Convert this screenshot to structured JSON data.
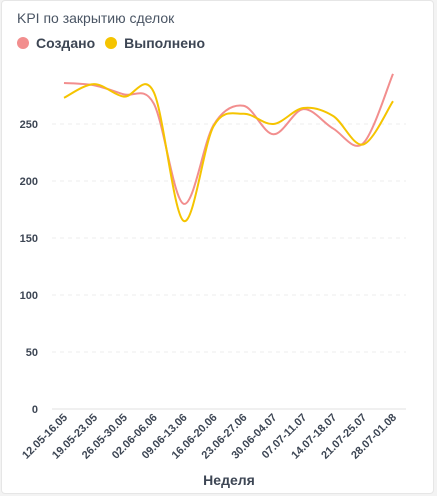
{
  "chart_data": {
    "type": "line",
    "title": "KPI по закрытию сделок",
    "xlabel": "Неделя",
    "ylabel": "",
    "ylim": [
      0,
      300
    ],
    "yticks": [
      0,
      50,
      100,
      150,
      200,
      250
    ],
    "grid": true,
    "legend_position": "top-left",
    "categories": [
      "12.05-16.05",
      "19.05-23.05",
      "26.05-30.05",
      "02.06-06.06",
      "09.06-13.06",
      "16.06-20.06",
      "23.06-27.06",
      "30.06-04.07",
      "07.07-11.07",
      "14.07-18.07",
      "21.07-25.07",
      "28.07-01.08"
    ],
    "series": [
      {
        "name": "Создано",
        "color": "#f28e8e",
        "values": [
          286,
          284,
          276,
          268,
          180,
          249,
          266,
          241,
          263,
          246,
          233,
          294
        ]
      },
      {
        "name": "Выполнено",
        "color": "#f5c400",
        "values": [
          273,
          285,
          274,
          278,
          165,
          248,
          259,
          250,
          264,
          257,
          232,
          270
        ]
      }
    ]
  }
}
